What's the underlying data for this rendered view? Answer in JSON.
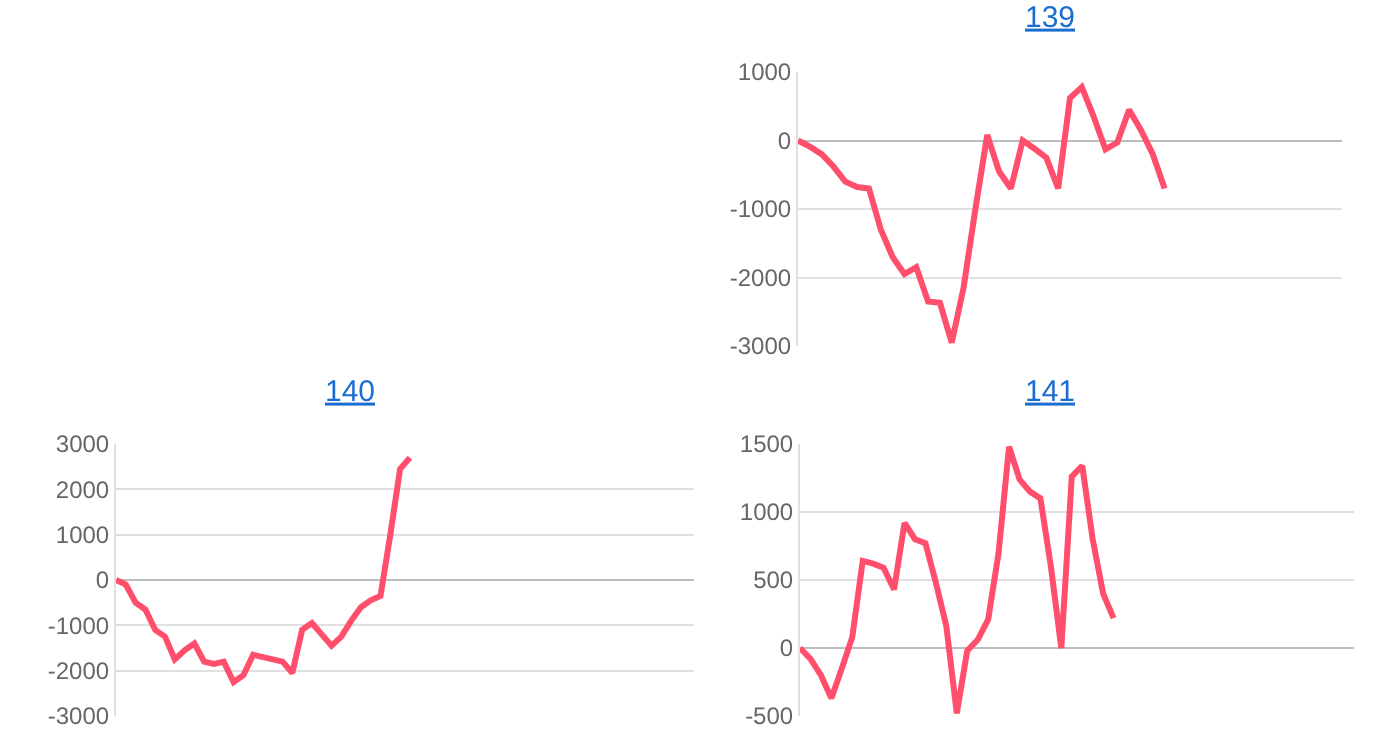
{
  "chart_data": [
    {
      "type": "line",
      "title": "139",
      "categories": [
        null,
        null,
        null,
        null,
        null,
        null,
        null,
        null,
        null,
        null,
        null,
        null,
        null,
        null,
        null,
        null,
        null,
        null,
        null,
        null,
        null,
        null,
        null,
        null,
        null,
        null,
        null,
        null,
        null,
        null,
        null,
        null,
        null,
        null,
        null,
        null,
        null,
        null,
        null,
        null,
        null,
        null,
        null,
        null,
        null,
        null,
        null
      ],
      "values": [
        0,
        -90,
        -200,
        -380,
        -600,
        -680,
        -700,
        -1300,
        -1700,
        -1950,
        -1850,
        -2350,
        -2370,
        -2950,
        -2150,
        -1000,
        80,
        -450,
        -700,
        0,
        -120,
        -250,
        -700,
        620,
        780,
        350,
        -130,
        -30,
        450,
        150,
        -200,
        -700,
        null,
        null,
        null,
        null,
        null,
        null,
        null,
        null,
        null,
        null,
        null,
        null,
        null,
        null,
        null
      ],
      "color": "#ff4f6d",
      "ylim": [
        -3000,
        1000
      ],
      "yticks": [
        -3000,
        -2000,
        -1000,
        0,
        1000
      ],
      "grid": "y",
      "line_style": "solid",
      "marker": "none"
    },
    {
      "type": "line",
      "title": "140",
      "categories": [
        null,
        null,
        null,
        null,
        null,
        null,
        null,
        null,
        null,
        null,
        null,
        null,
        null,
        null,
        null,
        null,
        null,
        null,
        null,
        null,
        null,
        null,
        null,
        null,
        null,
        null,
        null,
        null,
        null,
        null,
        null,
        null,
        null,
        null,
        null,
        null,
        null,
        null,
        null,
        null,
        null,
        null,
        null,
        null,
        null,
        null,
        null,
        null,
        null,
        null,
        null,
        null,
        null,
        null,
        null,
        null,
        null,
        null,
        null,
        null
      ],
      "values": [
        0,
        -100,
        -500,
        -650,
        -1100,
        -1250,
        -1750,
        -1550,
        -1400,
        -1800,
        -1850,
        -1800,
        -2250,
        -2100,
        -1650,
        -1700,
        -1750,
        -1800,
        -2050,
        -1100,
        -950,
        -1200,
        -1450,
        -1250,
        -900,
        -600,
        -450,
        -350,
        1000,
        2450,
        2700,
        null,
        null,
        null,
        null,
        null,
        null,
        null,
        null,
        null,
        null,
        null,
        null,
        null,
        null,
        null,
        null,
        null,
        null,
        null,
        null,
        null,
        null,
        null,
        null,
        null,
        null,
        null,
        null,
        null
      ],
      "color": "#ff4f6d",
      "ylim": [
        -3000,
        3000
      ],
      "yticks": [
        -3000,
        -2000,
        -1000,
        0,
        1000,
        2000,
        3000
      ],
      "grid": "y",
      "line_style": "solid",
      "marker": "none"
    },
    {
      "type": "line",
      "title": "141",
      "categories": [
        null,
        null,
        null,
        null,
        null,
        null,
        null,
        null,
        null,
        null,
        null,
        null,
        null,
        null,
        null,
        null,
        null,
        null,
        null,
        null,
        null,
        null,
        null,
        null,
        null,
        null,
        null,
        null,
        null,
        null,
        null,
        null,
        null,
        null,
        null,
        null,
        null,
        null,
        null,
        null,
        null,
        null,
        null,
        null,
        null,
        null,
        null,
        null,
        null,
        null,
        null,
        null,
        null,
        null
      ],
      "values": [
        0,
        -80,
        -200,
        -370,
        -150,
        80,
        640,
        620,
        590,
        430,
        920,
        800,
        770,
        480,
        160,
        -480,
        -20,
        60,
        210,
        700,
        1480,
        1240,
        1150,
        1100,
        600,
        0,
        1260,
        1340,
        800,
        400,
        220,
        null,
        null,
        null,
        null,
        null,
        null,
        null,
        null,
        null,
        null,
        null,
        null,
        null,
        null,
        null,
        null,
        null,
        null,
        null,
        null,
        null,
        null,
        null
      ],
      "color": "#ff4f6d",
      "ylim": [
        -500,
        1500
      ],
      "yticks": [
        -500,
        0,
        500,
        1000,
        1500
      ],
      "grid": "y",
      "line_style": "solid",
      "marker": "none"
    }
  ]
}
